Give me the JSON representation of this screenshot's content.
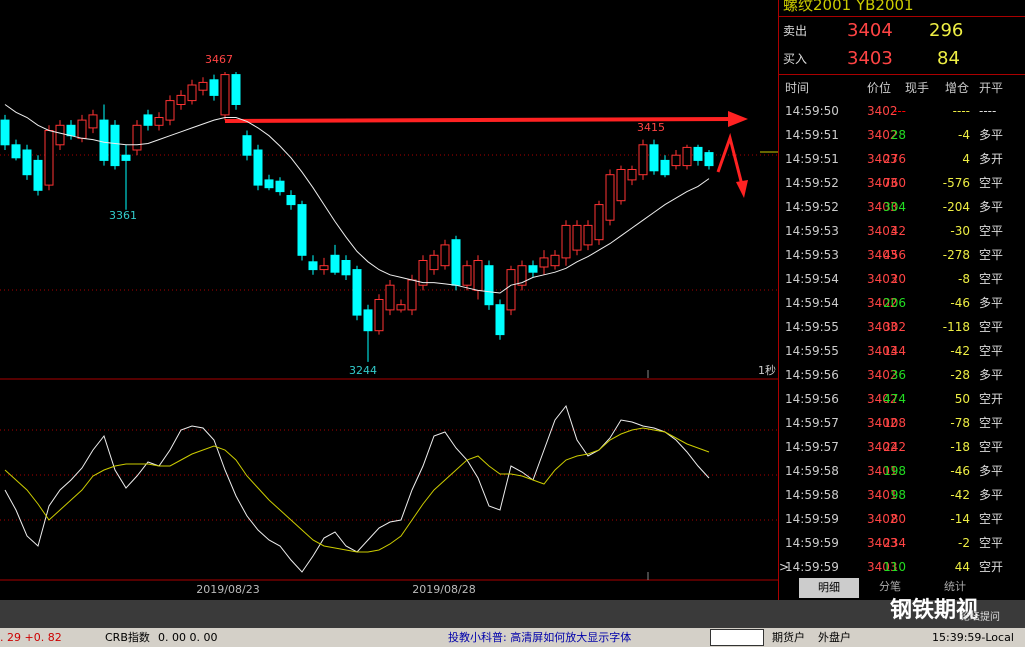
{
  "chart": {
    "header": "螺纹2001  YB2001",
    "labels": {
      "high": "3467",
      "low1": "3361",
      "low2": "3244",
      "recent": "3415",
      "interval": "1秒"
    },
    "dates": [
      "2019/08/23",
      "2019/08/28"
    ],
    "candles": [
      [
        3430,
        3434,
        3407,
        3411
      ],
      [
        3411,
        3415,
        3399,
        3401
      ],
      [
        3407,
        3411,
        3384,
        3388
      ],
      [
        3399,
        3403,
        3372,
        3376
      ],
      [
        3380,
        3426,
        3376,
        3422
      ],
      [
        3411,
        3430,
        3407,
        3426
      ],
      [
        3426,
        3430,
        3415,
        3418
      ],
      [
        3416,
        3434,
        3413,
        3430
      ],
      [
        3424,
        3438,
        3420,
        3434
      ],
      [
        3430,
        3442,
        3395,
        3399
      ],
      [
        3426,
        3430,
        3392,
        3395
      ],
      [
        3403,
        3411,
        3361,
        3399
      ],
      [
        3407,
        3430,
        3403,
        3426
      ],
      [
        3434,
        3438,
        3422,
        3426
      ],
      [
        3426,
        3436,
        3422,
        3432
      ],
      [
        3430,
        3449,
        3426,
        3445
      ],
      [
        3442,
        3453,
        3438,
        3449
      ],
      [
        3445,
        3461,
        3442,
        3457
      ],
      [
        3453,
        3463,
        3449,
        3459
      ],
      [
        3461,
        3465,
        3445,
        3449
      ],
      [
        3434,
        3467,
        3430,
        3465
      ],
      [
        3465,
        3467,
        3438,
        3442
      ],
      [
        3418,
        3422,
        3399,
        3403
      ],
      [
        3407,
        3411,
        3376,
        3380
      ],
      [
        3384,
        3388,
        3376,
        3378
      ],
      [
        3383,
        3386,
        3372,
        3375
      ],
      [
        3372,
        3376,
        3361,
        3365
      ],
      [
        3365,
        3368,
        3322,
        3326
      ],
      [
        3321,
        3326,
        3311,
        3315
      ],
      [
        3315,
        3324,
        3311,
        3318
      ],
      [
        3326,
        3334,
        3311,
        3313
      ],
      [
        3322,
        3326,
        3307,
        3311
      ],
      [
        3315,
        3318,
        3276,
        3280
      ],
      [
        3284,
        3288,
        3244,
        3268
      ],
      [
        3268,
        3296,
        3265,
        3292
      ],
      [
        3284,
        3307,
        3280,
        3303
      ],
      [
        3284,
        3292,
        3282,
        3288
      ],
      [
        3284,
        3311,
        3280,
        3307
      ],
      [
        3303,
        3326,
        3299,
        3322
      ],
      [
        3315,
        3330,
        3311,
        3326
      ],
      [
        3318,
        3338,
        3315,
        3334
      ],
      [
        3338,
        3341,
        3299,
        3303
      ],
      [
        3303,
        3322,
        3299,
        3318
      ],
      [
        3299,
        3326,
        3292,
        3322
      ],
      [
        3318,
        3322,
        3284,
        3288
      ],
      [
        3288,
        3292,
        3261,
        3265
      ],
      [
        3284,
        3318,
        3280,
        3315
      ],
      [
        3303,
        3322,
        3299,
        3318
      ],
      [
        3318,
        3322,
        3309,
        3313
      ],
      [
        3317,
        3330,
        3311,
        3324
      ],
      [
        3318,
        3330,
        3315,
        3326
      ],
      [
        3324,
        3353,
        3318,
        3349
      ],
      [
        3330,
        3353,
        3326,
        3349
      ],
      [
        3334,
        3353,
        3330,
        3349
      ],
      [
        3338,
        3368,
        3334,
        3365
      ],
      [
        3353,
        3392,
        3349,
        3388
      ],
      [
        3368,
        3395,
        3365,
        3392
      ],
      [
        3384,
        3395,
        3380,
        3392
      ],
      [
        3388,
        3415,
        3384,
        3411
      ],
      [
        3411,
        3415,
        3388,
        3391
      ],
      [
        3399,
        3403,
        3386,
        3388
      ],
      [
        3395,
        3407,
        3392,
        3403
      ],
      [
        3395,
        3411,
        3392,
        3409
      ],
      [
        3409,
        3411,
        3395,
        3399
      ],
      [
        3405,
        3407,
        3392,
        3395
      ]
    ],
    "ma": [
      3442,
      3436,
      3432,
      3426,
      3422,
      3420,
      3418,
      3416,
      3415,
      3413,
      3412,
      3411,
      3411,
      3412,
      3415,
      3418,
      3421,
      3424,
      3427,
      3430,
      3432,
      3432,
      3429,
      3424,
      3418,
      3410,
      3401,
      3390,
      3378,
      3365,
      3352,
      3340,
      3329,
      3321,
      3315,
      3311,
      3309,
      3307,
      3305,
      3305,
      3304,
      3303,
      3301,
      3299,
      3298,
      3297,
      3303,
      3305,
      3309,
      3311,
      3313,
      3316,
      3321,
      3325,
      3330,
      3335,
      3341,
      3347,
      3353,
      3359,
      3365,
      3370,
      3375,
      3379,
      3385
    ],
    "osc_fast": [
      45,
      35,
      22,
      17,
      37,
      45,
      50,
      56,
      65,
      72,
      55,
      46,
      52,
      59,
      57,
      65,
      75,
      77,
      76,
      70,
      55,
      42,
      32,
      25,
      20,
      17,
      10,
      4,
      12,
      21,
      24,
      17,
      14,
      20,
      26,
      29,
      30,
      45,
      57,
      72,
      74,
      66,
      60,
      51,
      37,
      35,
      57,
      54,
      50,
      65,
      80,
      87,
      70,
      62,
      65,
      71,
      80,
      79,
      77,
      76,
      74,
      70,
      64,
      57,
      51
    ],
    "osc_slow": [
      55,
      50,
      45,
      38,
      30,
      35,
      40,
      45,
      52,
      55,
      57,
      58,
      58,
      58,
      57,
      57,
      60,
      63,
      65,
      67,
      65,
      60,
      52,
      46,
      40,
      35,
      30,
      25,
      20,
      17,
      16,
      15,
      14,
      14,
      15,
      18,
      22,
      30,
      38,
      45,
      50,
      55,
      60,
      62,
      57,
      53,
      53,
      52,
      50,
      48,
      55,
      60,
      62,
      63,
      65,
      70,
      73,
      75,
      76,
      75,
      74,
      71,
      68,
      66,
      64
    ]
  },
  "quote": {
    "sell_label": "卖出",
    "sell_price": 3404,
    "sell_vol": 296,
    "buy_label": "买入",
    "buy_price": 3403,
    "buy_vol": 84
  },
  "tick_table": {
    "headers": [
      "时间",
      "价位",
      "现手",
      "增仓",
      "开平"
    ],
    "rows": [
      {
        "time": "14:59:50",
        "price": 3402,
        "volume": "---",
        "change": "----",
        "type": "----",
        "color": "red"
      },
      {
        "time": "14:59:51",
        "price": 3402,
        "volume": 28,
        "change": -4,
        "type": "多平",
        "color": "#2d2"
      },
      {
        "time": "14:59:51",
        "price": 3403,
        "volume": 276,
        "change": 4,
        "type": "多开",
        "color": "#f44"
      },
      {
        "time": "14:59:52",
        "price": 3403,
        "volume": 760,
        "change": -576,
        "type": "空平",
        "color": "#f44"
      },
      {
        "time": "14:59:52",
        "price": 3403,
        "volume": 304,
        "change": -204,
        "type": "多平",
        "color": "#2d2"
      },
      {
        "time": "14:59:53",
        "price": 3403,
        "volume": 42,
        "change": -30,
        "type": "空平",
        "color": "#f44"
      },
      {
        "time": "14:59:53",
        "price": 3403,
        "volume": 456,
        "change": -278,
        "type": "空平",
        "color": "#f44"
      },
      {
        "time": "14:59:54",
        "price": 3403,
        "volume": 20,
        "change": -8,
        "type": "空平",
        "color": "#f44"
      },
      {
        "time": "14:59:54",
        "price": 3402,
        "volume": 206,
        "change": -46,
        "type": "多平",
        "color": "#2d2"
      },
      {
        "time": "14:59:55",
        "price": 3403,
        "volume": 302,
        "change": -118,
        "type": "空平",
        "color": "#f44"
      },
      {
        "time": "14:59:55",
        "price": 3403,
        "volume": 144,
        "change": -42,
        "type": "空平",
        "color": "#f44"
      },
      {
        "time": "14:59:56",
        "price": 3402,
        "volume": 36,
        "change": -28,
        "type": "多平",
        "color": "#2d2"
      },
      {
        "time": "14:59:56",
        "price": 3402,
        "volume": 474,
        "change": 50,
        "type": "空开",
        "color": "#2d2"
      },
      {
        "time": "14:59:57",
        "price": 3402,
        "volume": 108,
        "change": -78,
        "type": "空平",
        "color": "#f44"
      },
      {
        "time": "14:59:57",
        "price": 3402,
        "volume": 242,
        "change": -18,
        "type": "空平",
        "color": "#f44"
      },
      {
        "time": "14:59:58",
        "price": 3401,
        "volume": 198,
        "change": -46,
        "type": "多平",
        "color": "#2d2"
      },
      {
        "time": "14:59:58",
        "price": 3401,
        "volume": 98,
        "change": -42,
        "type": "多平",
        "color": "#2d2"
      },
      {
        "time": "14:59:59",
        "price": 3402,
        "volume": 80,
        "change": -14,
        "type": "空平",
        "color": "#f44"
      },
      {
        "time": "14:59:59",
        "price": 3403,
        "volume": 234,
        "change": -2,
        "type": "空平",
        "color": "#f44"
      },
      {
        "time": "14:59:59",
        "price": 3403,
        "volume": 110,
        "change": 44,
        "type": "空开",
        "color": "#2d2",
        "marker": ">"
      }
    ]
  },
  "tabs": [
    "明细",
    "分笔",
    "统计"
  ],
  "watermark": {
    "title": "钢铁期视",
    "sub": "论坛提问"
  },
  "status_bar": {
    "left_value": ". 29 +0. 82",
    "index_label": "CRB指数",
    "index_value": "0. 00 0. 00",
    "notice": "投教小科普: 高清屏如何放大显示字体",
    "button1": "期货户",
    "button2": "外盘户",
    "clock": "15:39:59-Local"
  }
}
